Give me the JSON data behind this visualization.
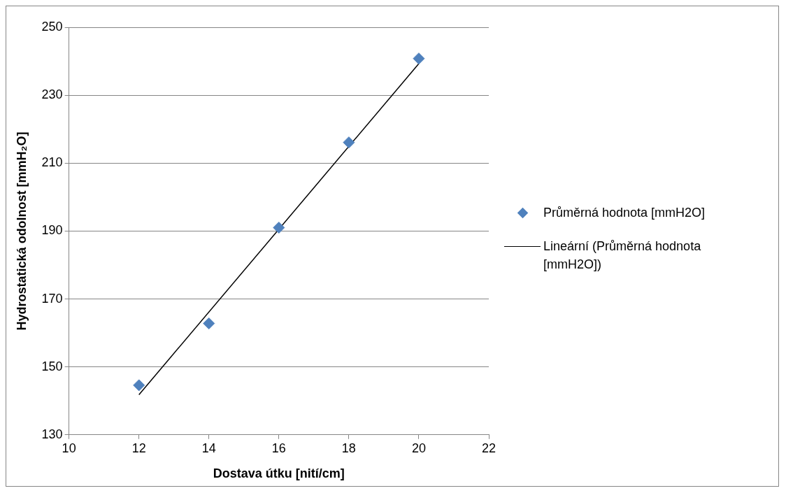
{
  "chart_data": {
    "type": "scatter",
    "xlabel": "Dostava útku [nití/cm]",
    "ylabel": "Hydrostatická odolnost [mmH₂O]",
    "xlim": [
      10,
      22
    ],
    "xticks": [
      10,
      12,
      14,
      16,
      18,
      20,
      22
    ],
    "ylim": [
      130,
      250
    ],
    "yticks": [
      130,
      150,
      170,
      190,
      210,
      230,
      250
    ],
    "grid": "y",
    "legend": "right",
    "series": [
      {
        "name": "Průměrná hodnota [mmH2O]",
        "marker": "diamond",
        "color": "#4f81bd",
        "x": [
          12,
          14,
          16,
          18,
          20
        ],
        "values": [
          144.6,
          162.8,
          191,
          216.1,
          240.8
        ]
      },
      {
        "name": "Lineární (Průměrná hodnota [mmH2O])",
        "type": "line",
        "marker": "none",
        "color": "#000000",
        "x": [
          12,
          20
        ],
        "values": [
          141.8,
          239.3
        ]
      }
    ]
  }
}
